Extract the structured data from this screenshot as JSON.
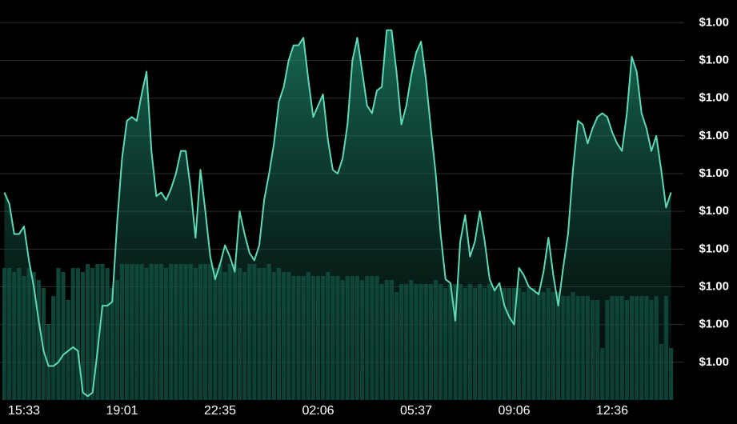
{
  "chart_data": {
    "type": "line",
    "categories": [
      null,
      null,
      null,
      null,
      "15:33",
      null,
      null,
      null,
      null,
      null,
      null,
      null,
      null,
      null,
      null,
      null,
      null,
      null,
      null,
      null,
      null,
      null,
      null,
      null,
      "19:01",
      null,
      null,
      null,
      null,
      null,
      null,
      null,
      null,
      null,
      null,
      null,
      null,
      null,
      null,
      null,
      null,
      null,
      null,
      null,
      "22:35",
      null,
      null,
      null,
      null,
      null,
      null,
      null,
      null,
      null,
      null,
      null,
      null,
      null,
      null,
      null,
      null,
      null,
      null,
      null,
      "02:06",
      null,
      null,
      null,
      null,
      null,
      null,
      null,
      null,
      null,
      null,
      null,
      null,
      null,
      null,
      null,
      null,
      null,
      null,
      null,
      "05:37",
      null,
      null,
      null,
      null,
      null,
      null,
      null,
      null,
      null,
      null,
      null,
      null,
      null,
      null,
      null,
      null,
      null,
      null,
      null,
      "09:06",
      null,
      null,
      null,
      null,
      null,
      null,
      null,
      null,
      null,
      null,
      null,
      null,
      null,
      null,
      null,
      null,
      null,
      null,
      null,
      "12:36",
      null,
      null,
      null,
      null,
      null,
      null,
      null,
      null,
      null,
      null,
      null,
      null
    ],
    "series": [
      {
        "color": "#5ed8b6",
        "values": [
          1.0,
          0.99997,
          0.99989,
          0.99989,
          0.99991,
          0.99982,
          0.99975,
          0.99966,
          0.99958,
          0.99954,
          0.99954,
          0.99955,
          0.99957,
          0.99958,
          0.99959,
          0.99958,
          0.99947,
          0.99946,
          0.99947,
          0.99958,
          0.9997,
          0.9997,
          0.99971,
          0.99992,
          1.00009,
          1.00019,
          1.0002,
          1.00019,
          1.00026,
          1.00032,
          1.00011,
          0.99999,
          1.0,
          0.99998,
          1.00001,
          1.00005,
          1.00011,
          1.00011,
          1.00001,
          0.99988,
          1.00006,
          0.99995,
          0.99983,
          0.99977,
          0.99981,
          0.99986,
          0.99983,
          0.99979,
          0.99995,
          0.99989,
          0.99984,
          0.99982,
          0.99986,
          0.99998,
          1.00005,
          1.00013,
          1.00024,
          1.00028,
          1.00035,
          1.00039,
          1.00039,
          1.00041,
          1.0003,
          1.0002,
          1.00023,
          1.00026,
          1.00014,
          1.00006,
          1.00005,
          1.00009,
          1.00018,
          1.00035,
          1.00041,
          1.00032,
          1.00023,
          1.00021,
          1.00027,
          1.00028,
          1.00043,
          1.00043,
          1.00032,
          1.00018,
          1.00023,
          1.00031,
          1.00037,
          1.0004,
          1.0003,
          1.00017,
          1.00005,
          0.99989,
          0.99977,
          0.99976,
          0.99966,
          0.99987,
          0.99994,
          0.99983,
          0.99987,
          0.99995,
          0.99987,
          0.99977,
          0.99974,
          0.99976,
          0.9997,
          0.99967,
          0.99965,
          0.9998,
          0.99978,
          0.99975,
          0.99974,
          0.99973,
          0.99979,
          0.99988,
          0.99978,
          0.9997,
          0.9998,
          0.99989,
          1.00006,
          1.00019,
          1.00018,
          1.00013,
          1.00017,
          1.0002,
          1.00021,
          1.0002,
          1.00016,
          1.00013,
          1.00011,
          1.00021,
          1.00036,
          1.00032,
          1.00021,
          1.00017,
          1.00011,
          1.00015,
          1.00006,
          0.99996,
          1.0
        ]
      },
      {
        "color": "#145c4c",
        "axis": "y2",
        "values": [
          33,
          33,
          32,
          33,
          31,
          33,
          32,
          30,
          28,
          19,
          26,
          33,
          32,
          25,
          33,
          33,
          32,
          34,
          33,
          34,
          34,
          33,
          28,
          30,
          34,
          34,
          34,
          34,
          34,
          33,
          34,
          34,
          34,
          33,
          34,
          34,
          34,
          34,
          34,
          33,
          34,
          34,
          34,
          33,
          34,
          32,
          34,
          34,
          33,
          32,
          34,
          34,
          33,
          33,
          34,
          32,
          33,
          32,
          32,
          31,
          31,
          31,
          32,
          31,
          31,
          31,
          32,
          31,
          31,
          30,
          31,
          31,
          31,
          30,
          31,
          31,
          31,
          29,
          30,
          30,
          27,
          29,
          29,
          30,
          29,
          29,
          29,
          29,
          30,
          29,
          28,
          29,
          29,
          29,
          28,
          29,
          28,
          29,
          28,
          29,
          28,
          28,
          28,
          28,
          28,
          28,
          27,
          28,
          28,
          27,
          27,
          28,
          27,
          27,
          26,
          26,
          27,
          26,
          26,
          26,
          25,
          25,
          13,
          25,
          26,
          26,
          26,
          25,
          26,
          26,
          26,
          26,
          25,
          26,
          14,
          26,
          13
        ]
      }
    ],
    "ylim": [
      0.99945,
      1.00051
    ],
    "yticks": [
      {
        "value": 1.00045,
        "label": "$1.00"
      },
      {
        "value": 1.00035,
        "label": "$1.00"
      },
      {
        "value": 1.00025,
        "label": "$1.00"
      },
      {
        "value": 1.00015,
        "label": "$1.00"
      },
      {
        "value": 1.00005,
        "label": "$1.00"
      },
      {
        "value": 0.99995,
        "label": "$1.00"
      },
      {
        "value": 0.99985,
        "label": "$1.00"
      },
      {
        "value": 0.99975,
        "label": "$1.00"
      },
      {
        "value": 0.99965,
        "label": "$1.00"
      },
      {
        "value": 0.99955,
        "label": "$1.00"
      }
    ],
    "y2lim": [
      0,
      100
    ],
    "grid": true
  }
}
